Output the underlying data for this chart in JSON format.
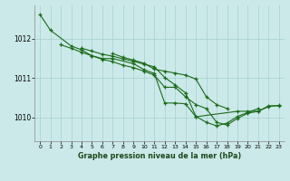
{
  "background_color": "#cce9e9",
  "grid_color": "#aad4d4",
  "line_color": "#1a6b1a",
  "title": "Graphe pression niveau de la mer (hPa)",
  "xlim": [
    -0.5,
    23.5
  ],
  "ylim": [
    1009.4,
    1012.85
  ],
  "yticks": [
    1010,
    1011,
    1012
  ],
  "xticks": [
    0,
    1,
    2,
    3,
    4,
    5,
    6,
    7,
    8,
    9,
    10,
    11,
    12,
    13,
    14,
    15,
    16,
    17,
    18,
    19,
    20,
    21,
    22,
    23
  ],
  "line1_x": [
    0,
    1,
    3,
    4,
    5,
    6,
    7,
    9,
    10,
    11,
    12,
    13,
    14,
    15,
    19,
    20,
    21,
    22,
    23
  ],
  "line1_y": [
    1012.62,
    1012.22,
    1011.82,
    1011.72,
    1011.57,
    1011.5,
    1011.5,
    1011.37,
    1011.22,
    1011.12,
    1010.37,
    1010.37,
    1010.35,
    1010.02,
    1010.16,
    1010.16,
    1010.16,
    1010.3,
    1010.3
  ],
  "line2_x": [
    2,
    3,
    4,
    5,
    6,
    7,
    8,
    9,
    10,
    11,
    12,
    13,
    14,
    15,
    16,
    17,
    18,
    19,
    20,
    21,
    22,
    23
  ],
  "line2_y": [
    1011.85,
    1011.76,
    1011.66,
    1011.57,
    1011.48,
    1011.42,
    1011.33,
    1011.27,
    1011.18,
    1011.08,
    1010.77,
    1010.77,
    1010.53,
    1010.33,
    1010.23,
    1009.88,
    1009.81,
    1009.98,
    1010.11,
    1010.16,
    1010.28,
    1010.31
  ],
  "line3_x": [
    4,
    5,
    6,
    7,
    8,
    9,
    10,
    11,
    12,
    13,
    14,
    15,
    16,
    17,
    18,
    19,
    20,
    21
  ],
  "line3_y": [
    1011.76,
    1011.69,
    1011.61,
    1011.56,
    1011.49,
    1011.43,
    1011.36,
    1011.29,
    1011.02,
    1010.83,
    1010.63,
    1010.03,
    1009.88,
    1009.79,
    1009.86,
    1010.03,
    1010.13,
    1010.23
  ],
  "line4_x": [
    7,
    8,
    9,
    10,
    11,
    12,
    13,
    14,
    15,
    16,
    17,
    18
  ],
  "line4_y": [
    1011.63,
    1011.53,
    1011.46,
    1011.38,
    1011.23,
    1011.18,
    1011.13,
    1011.08,
    1010.98,
    1010.53,
    1010.33,
    1010.23
  ]
}
